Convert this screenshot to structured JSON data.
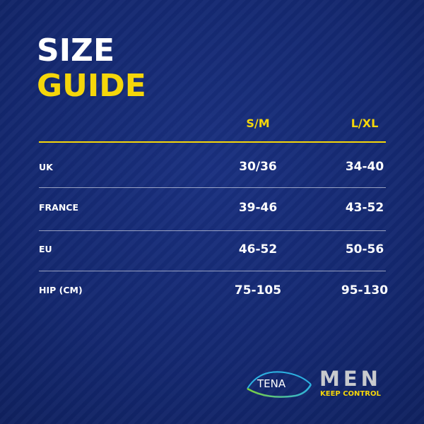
{
  "title": {
    "line1": "SIZE",
    "line2": "GUIDE"
  },
  "colors": {
    "background": "#142870",
    "accent": "#f5d60a",
    "text": "#ffffff",
    "logo_grey": "#c8cace"
  },
  "table": {
    "columns": [
      "S/M",
      "L/XL"
    ],
    "rows": [
      {
        "label": "UK",
        "values": [
          "30/36",
          "34-40"
        ]
      },
      {
        "label": "FRANCE",
        "values": [
          "39-46",
          "43-52"
        ]
      },
      {
        "label": "EU",
        "values": [
          "46-52",
          "50-56"
        ]
      },
      {
        "label": "HIP (CM)",
        "values": [
          "75-105",
          "95-130"
        ]
      }
    ]
  },
  "logo": {
    "brand": "TENA",
    "product": "MEN",
    "tagline": "KEEP CONTROL"
  }
}
